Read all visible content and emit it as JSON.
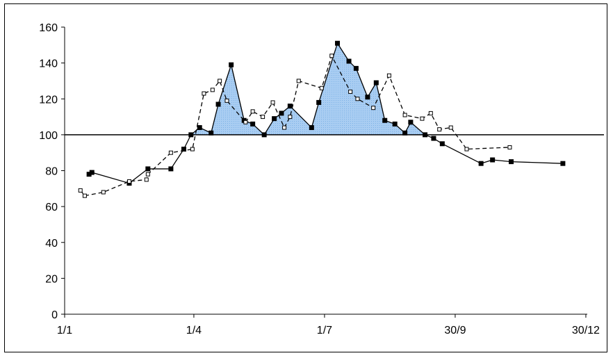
{
  "chart_data": {
    "type": "line",
    "title": "",
    "xlabel": "",
    "ylabel": "",
    "x_axis": {
      "type": "day_of_year",
      "range": [
        1,
        365
      ],
      "ticks": [
        {
          "day": 1,
          "label": "1/1"
        },
        {
          "day": 91,
          "label": "1/4"
        },
        {
          "day": 182,
          "label": "1/7"
        },
        {
          "day": 273,
          "label": "30/9"
        },
        {
          "day": 364,
          "label": "30/12"
        }
      ]
    },
    "y_axis": {
      "range": [
        0,
        160
      ],
      "ticks": [
        0,
        20,
        40,
        60,
        80,
        100,
        120,
        140,
        160
      ],
      "grid": false
    },
    "reference_line": {
      "y": 100,
      "color": "#000000"
    },
    "shaded_area": {
      "description": "area between solid series and 100 where above",
      "color": "#a9cdf2",
      "edge_color": "#6fa6dc"
    },
    "series": [
      {
        "name": "",
        "style": "solid",
        "marker": "filled-square",
        "color": "#000000",
        "points": [
          [
            18,
            78
          ],
          [
            20,
            79
          ],
          [
            46,
            73
          ],
          [
            59,
            81
          ],
          [
            75,
            81
          ],
          [
            84,
            92
          ],
          [
            89,
            100
          ],
          [
            95,
            104
          ],
          [
            103,
            101
          ],
          [
            108,
            117
          ],
          [
            117,
            139
          ],
          [
            126,
            108
          ],
          [
            132,
            106
          ],
          [
            140,
            100
          ],
          [
            147,
            109
          ],
          [
            152,
            112
          ],
          [
            158,
            116
          ],
          [
            173,
            104
          ],
          [
            178,
            118
          ],
          [
            191,
            151
          ],
          [
            199,
            141
          ],
          [
            204,
            137
          ],
          [
            212,
            121
          ],
          [
            218,
            129
          ],
          [
            224,
            108
          ],
          [
            231,
            106
          ],
          [
            238,
            101
          ],
          [
            242,
            107
          ],
          [
            252,
            100
          ],
          [
            258,
            98
          ],
          [
            264,
            95
          ],
          [
            291,
            84
          ],
          [
            299,
            86
          ],
          [
            312,
            85
          ],
          [
            348,
            84
          ]
        ]
      },
      {
        "name": "",
        "style": "dashed",
        "marker": "open-square",
        "color": "#000000",
        "points": [
          [
            12,
            69
          ],
          [
            15,
            66
          ],
          [
            28,
            68
          ],
          [
            46,
            74
          ],
          [
            58,
            75
          ],
          [
            59,
            78
          ],
          [
            75,
            90
          ],
          [
            90,
            92
          ],
          [
            98,
            123
          ],
          [
            104,
            125
          ],
          [
            109,
            130
          ],
          [
            114,
            119
          ],
          [
            127,
            107
          ],
          [
            132,
            113
          ],
          [
            139,
            110
          ],
          [
            146,
            118
          ],
          [
            154,
            104
          ],
          [
            158,
            110
          ],
          [
            164,
            130
          ],
          [
            180,
            126
          ],
          [
            187,
            144
          ],
          [
            200,
            124
          ],
          [
            205,
            120
          ],
          [
            216,
            115
          ],
          [
            227,
            133
          ],
          [
            238,
            111
          ],
          [
            250,
            109
          ],
          [
            256,
            112
          ],
          [
            262,
            103
          ],
          [
            270,
            104
          ],
          [
            281,
            92
          ],
          [
            311,
            93
          ]
        ]
      }
    ]
  }
}
